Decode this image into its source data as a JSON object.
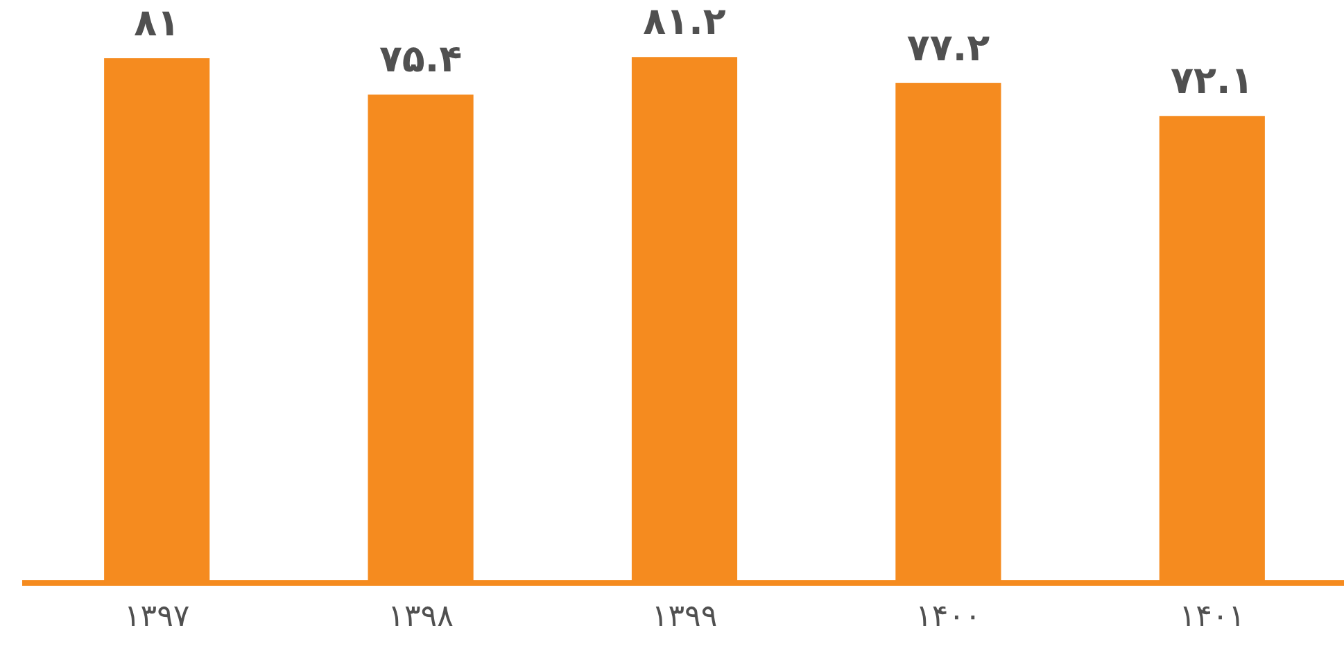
{
  "chart_data": {
    "type": "bar",
    "categories": [
      "۱۳۹۷",
      "۱۳۹۸",
      "۱۳۹۹",
      "۱۴۰۰",
      "۱۴۰۱"
    ],
    "values": [
      81,
      75.4,
      81.2,
      77.2,
      72.1
    ],
    "color": "#f58b1f",
    "value_labels": [
      "۸۱",
      "۷۵.۴",
      "۸۱.۲",
      "۷۷.۲",
      "۷۲.۱"
    ],
    "tick_labels": "x",
    "grid": false,
    "legend": false
  }
}
